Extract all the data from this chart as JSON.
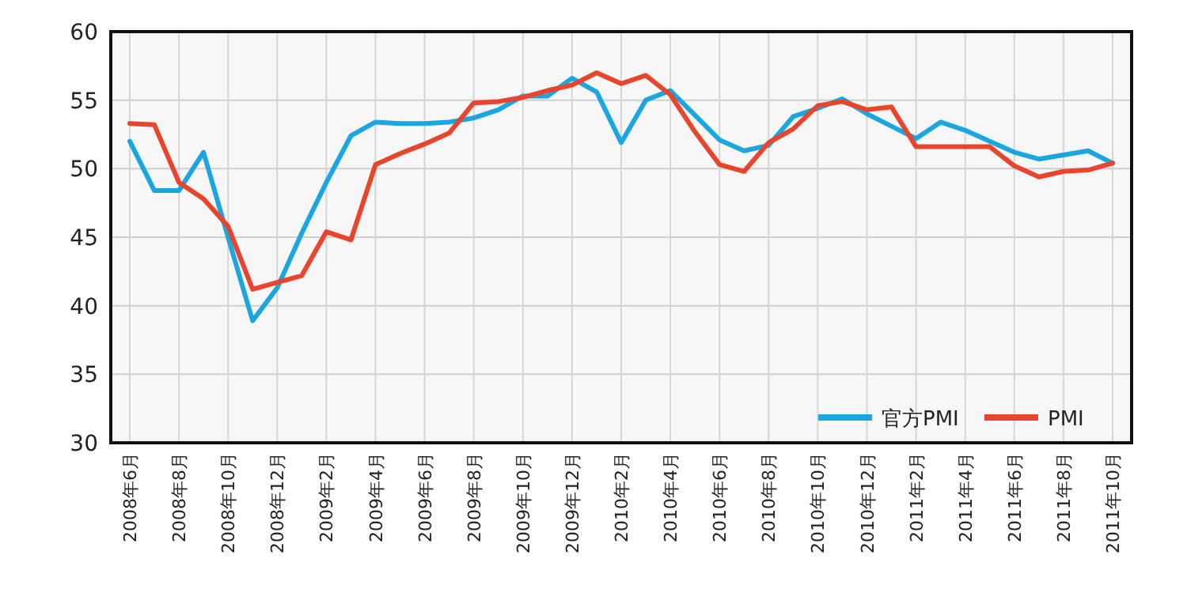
{
  "chart_data": {
    "type": "line",
    "categories": [
      "2008年6月",
      null,
      "2008年8月",
      null,
      "2008年10月",
      null,
      "2008年12月",
      null,
      "2009年2月",
      null,
      "2009年4月",
      null,
      "2009年6月",
      null,
      "2009年8月",
      null,
      "2009年10月",
      null,
      "2009年12月",
      null,
      "2010年2月",
      null,
      "2010年4月",
      null,
      "2010年6月",
      null,
      "2010年8月",
      null,
      "2010年10月",
      null,
      "2010年12月",
      null,
      "2011年2月",
      null,
      "2011年4月",
      null,
      "2011年6月",
      null,
      "2011年8月",
      null,
      "2011年10月"
    ],
    "series": [
      {
        "name": "官方PMI",
        "color": "#1ba6e0",
        "values": [
          52.0,
          48.4,
          48.4,
          51.2,
          45.0,
          38.9,
          41.3,
          45.3,
          49.0,
          52.4,
          53.4,
          53.3,
          53.3,
          53.4,
          53.7,
          54.3,
          55.3,
          55.3,
          56.6,
          55.6,
          51.9,
          55.0,
          55.7,
          53.9,
          52.1,
          51.3,
          51.7,
          53.8,
          54.4,
          55.1,
          54.0,
          53.1,
          52.2,
          53.4,
          52.8,
          52.0,
          51.2,
          50.7,
          51.0,
          51.3,
          50.4
        ]
      },
      {
        "name": "PMI",
        "color": "#e8452c",
        "values": [
          53.3,
          53.2,
          49.0,
          47.8,
          45.8,
          41.2,
          41.7,
          42.2,
          45.4,
          44.8,
          50.3,
          51.1,
          51.8,
          52.6,
          54.8,
          54.9,
          55.2,
          55.7,
          56.1,
          57.0,
          56.2,
          56.8,
          55.4,
          52.7,
          50.3,
          49.8,
          51.9,
          52.9,
          54.6,
          54.9,
          54.3,
          54.5,
          51.6,
          51.6,
          51.6,
          51.6,
          50.2,
          49.4,
          49.8,
          49.9,
          50.4
        ]
      }
    ],
    "ylim": [
      30,
      60
    ],
    "yticks": [
      30,
      35,
      40,
      45,
      50,
      55,
      60
    ],
    "grid": true,
    "legend": "bottom right",
    "marker": "none",
    "line_style": "solid"
  }
}
